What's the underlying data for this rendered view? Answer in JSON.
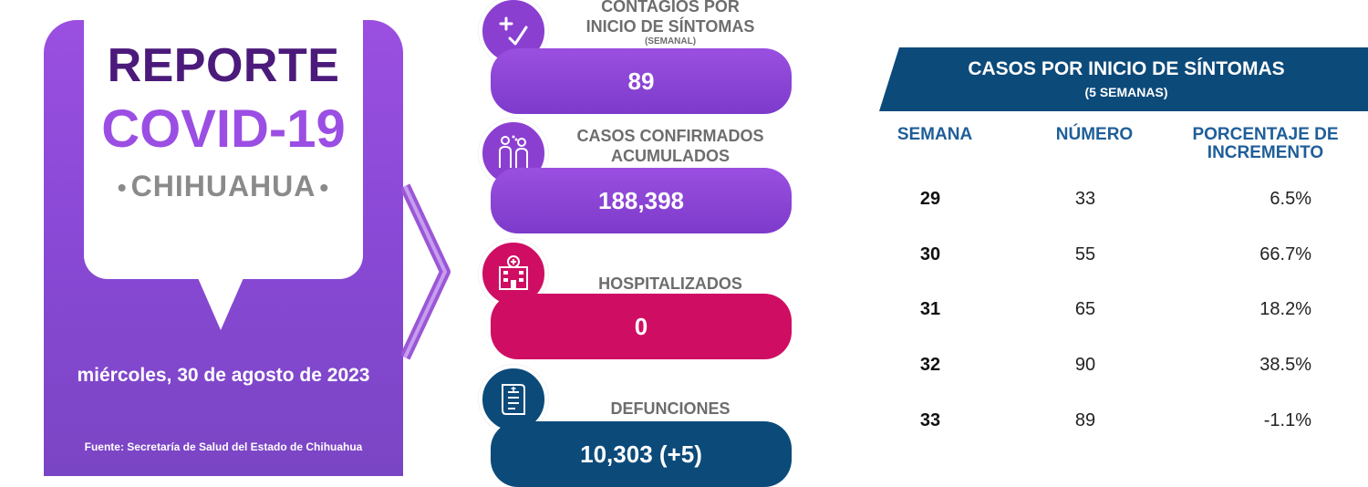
{
  "report": {
    "title_line1": "REPORTE",
    "title_line2": "COVID-19",
    "state": "CHIHUAHUA",
    "bullet": "•",
    "date": "miércoles, 30 de agosto de 2023",
    "source": "Fuente: Secretaría de Salud del Estado de Chihuahua"
  },
  "indicators": [
    {
      "label_line1": "CONTAGIOS POR",
      "label_line2": "INICIO DE SÍNTOMAS",
      "sublabel": "(SEMANAL)",
      "value": "89",
      "color": "#8b3fd1",
      "icon": "plus-check-icon"
    },
    {
      "label_line1": "CASOS CONFIRMADOS",
      "label_line2": "ACUMULADOS",
      "value": "188,398",
      "color": "#8b3fd1",
      "icon": "people-icon"
    },
    {
      "label": "HOSPITALIZADOS",
      "value": "0",
      "color": "#cf0d63",
      "icon": "hospital-icon"
    },
    {
      "label": "DEFUNCIONES",
      "value": "10,303 (+5)",
      "color": "#0c4a7a",
      "icon": "document-icon"
    }
  ],
  "table": {
    "title": "CASOS POR INICIO DE SÍNTOMAS",
    "subtitle": "(5 SEMANAS)",
    "headers": {
      "week": "SEMANA",
      "number": "NÚMERO",
      "percent_line1": "PORCENTAJE DE",
      "percent_line2": "INCREMENTO"
    },
    "rows": [
      {
        "week": "29",
        "number": "33",
        "percent": "6.5%"
      },
      {
        "week": "30",
        "number": "55",
        "percent": "66.7%"
      },
      {
        "week": "31",
        "number": "65",
        "percent": "18.2%"
      },
      {
        "week": "32",
        "number": "90",
        "percent": "38.5%"
      },
      {
        "week": "33",
        "number": "89",
        "percent": "-1.1%"
      }
    ],
    "colors": {
      "banner": "#0c4a7a",
      "header_text": "#1f5e99"
    }
  }
}
